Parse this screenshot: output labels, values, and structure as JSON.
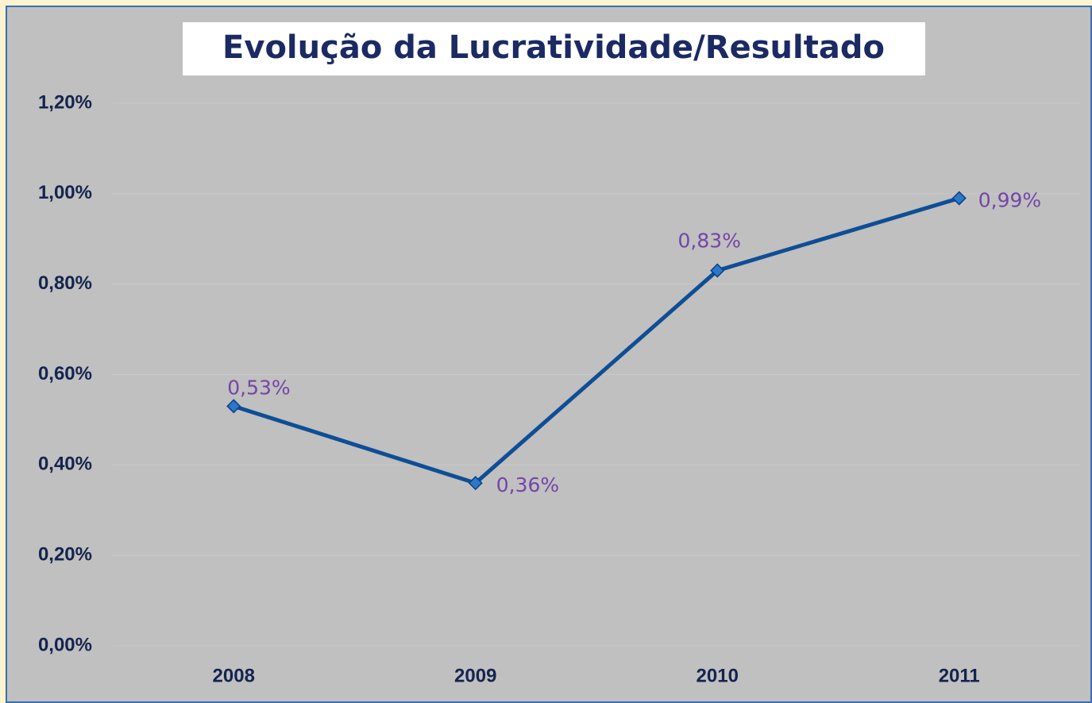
{
  "chart_data": {
    "type": "line",
    "title": "Evolução da Lucratividade/Resultado",
    "categories": [
      "2008",
      "2009",
      "2010",
      "2011"
    ],
    "values": [
      0.53,
      0.36,
      0.83,
      0.99
    ],
    "value_labels": [
      "0,53%",
      "0,36%",
      "0,83%",
      "0,99%"
    ],
    "color": "#0f4e96",
    "ylim": [
      0,
      1.2
    ],
    "yticks": [
      {
        "value": 0,
        "label": "0,00%"
      },
      {
        "value": 0.2,
        "label": "0,20%"
      },
      {
        "value": 0.4,
        "label": "0,40%"
      },
      {
        "value": 0.6,
        "label": "0,60%"
      },
      {
        "value": 0.8,
        "label": "0,80%"
      },
      {
        "value": 1.0,
        "label": "1,00%"
      },
      {
        "value": 1.2,
        "label": "1,20%"
      }
    ],
    "grid": true
  }
}
